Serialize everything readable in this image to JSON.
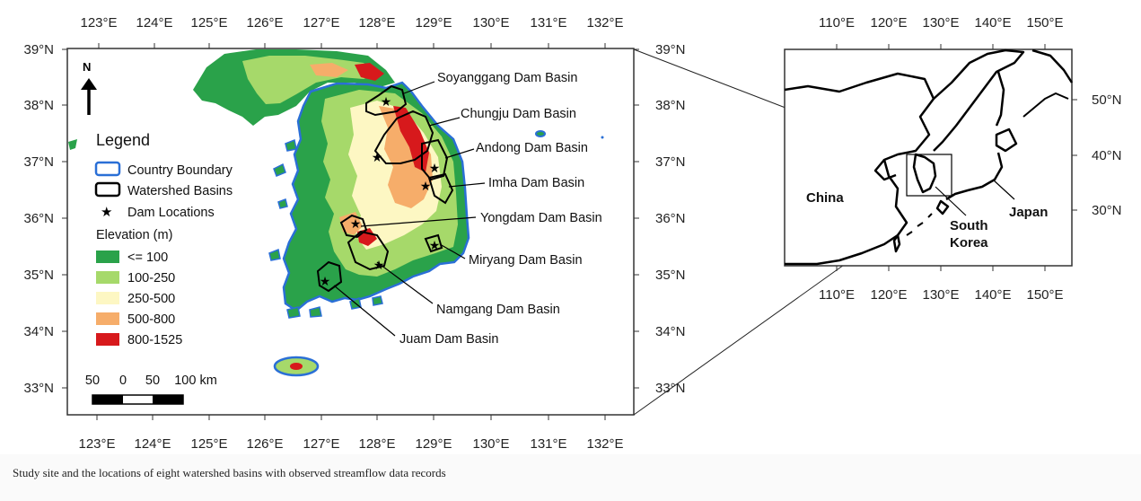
{
  "main_map": {
    "lon_ticks": [
      "123°E",
      "124°E",
      "125°E",
      "126°E",
      "127°E",
      "128°E",
      "129°E",
      "130°E",
      "131°E",
      "132°E"
    ],
    "lat_ticks": [
      "39°N",
      "38°N",
      "37°N",
      "36°N",
      "35°N",
      "34°N",
      "33°N"
    ],
    "north_label": "N",
    "legend": {
      "title": "Legend",
      "country_boundary": "Country Boundary",
      "watershed_basins": "Watershed Basins",
      "dam_locations": "Dam Locations",
      "elevation_title": "Elevation (m)",
      "classes": [
        {
          "label": "<= 100",
          "color": "#2aa24a"
        },
        {
          "label": "100-250",
          "color": "#a6d96a"
        },
        {
          "label": "250-500",
          "color": "#fdf7c3"
        },
        {
          "label": "500-800",
          "color": "#f6ad6a"
        },
        {
          "label": "800-1525",
          "color": "#d7191c"
        }
      ]
    },
    "scale_bar": {
      "labels": [
        "50",
        "0",
        "50",
        "100 km"
      ]
    },
    "basins": [
      "Soyanggang Dam Basin",
      "Chungju Dam Basin",
      "Andong Dam Basin",
      "Imha Dam Basin",
      "Yongdam Dam Basin",
      "Miryang Dam Basin",
      "Namgang Dam Basin",
      "Juam Dam Basin"
    ],
    "colors": {
      "boundary": "#2a6fd6",
      "basin": "#000000",
      "land_low": "#2aa24a"
    }
  },
  "inset_map": {
    "lon_ticks": [
      "110°E",
      "120°E",
      "130°E",
      "140°E",
      "150°E"
    ],
    "lat_ticks": [
      "50°N",
      "40°N",
      "30°N"
    ],
    "labels": {
      "china": "China",
      "japan": "Japan",
      "south": "South",
      "korea": "Korea"
    }
  },
  "caption": "Study site and the locations of eight watershed basins with observed streamflow data records"
}
